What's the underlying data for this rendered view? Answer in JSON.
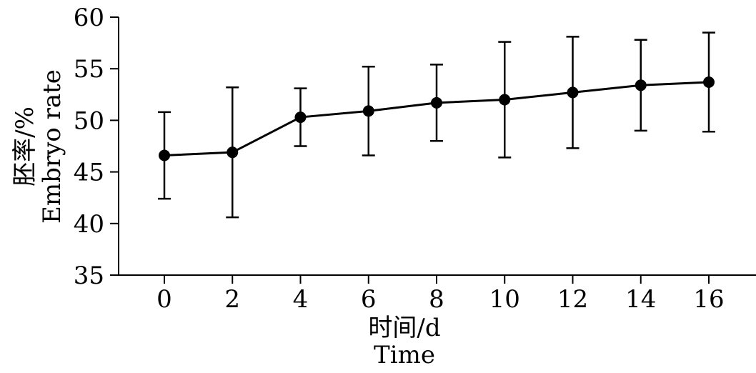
{
  "chart_data": {
    "type": "line",
    "title": "",
    "xlabel": "时间/d",
    "xlabel_en": "Time",
    "ylabel": "胚率/%",
    "ylabel_en": "Embryo rate",
    "x": [
      0,
      2,
      4,
      6,
      8,
      10,
      12,
      14,
      16
    ],
    "x_tick_labels": [
      "0",
      "2",
      "4",
      "6",
      "8",
      "10",
      "12",
      "14",
      "16"
    ],
    "y_ticks": [
      35,
      40,
      45,
      50,
      55,
      60
    ],
    "ylim": [
      35,
      60
    ],
    "grid": false,
    "legend": "none",
    "series": [
      {
        "values": [
          46.6,
          46.9,
          50.3,
          50.9,
          51.7,
          52.0,
          52.7,
          53.4,
          53.7
        ],
        "error": [
          4.2,
          6.3,
          2.8,
          4.3,
          3.7,
          5.6,
          5.4,
          4.4,
          4.8
        ],
        "color": "#000000",
        "marker": "circle"
      }
    ]
  }
}
